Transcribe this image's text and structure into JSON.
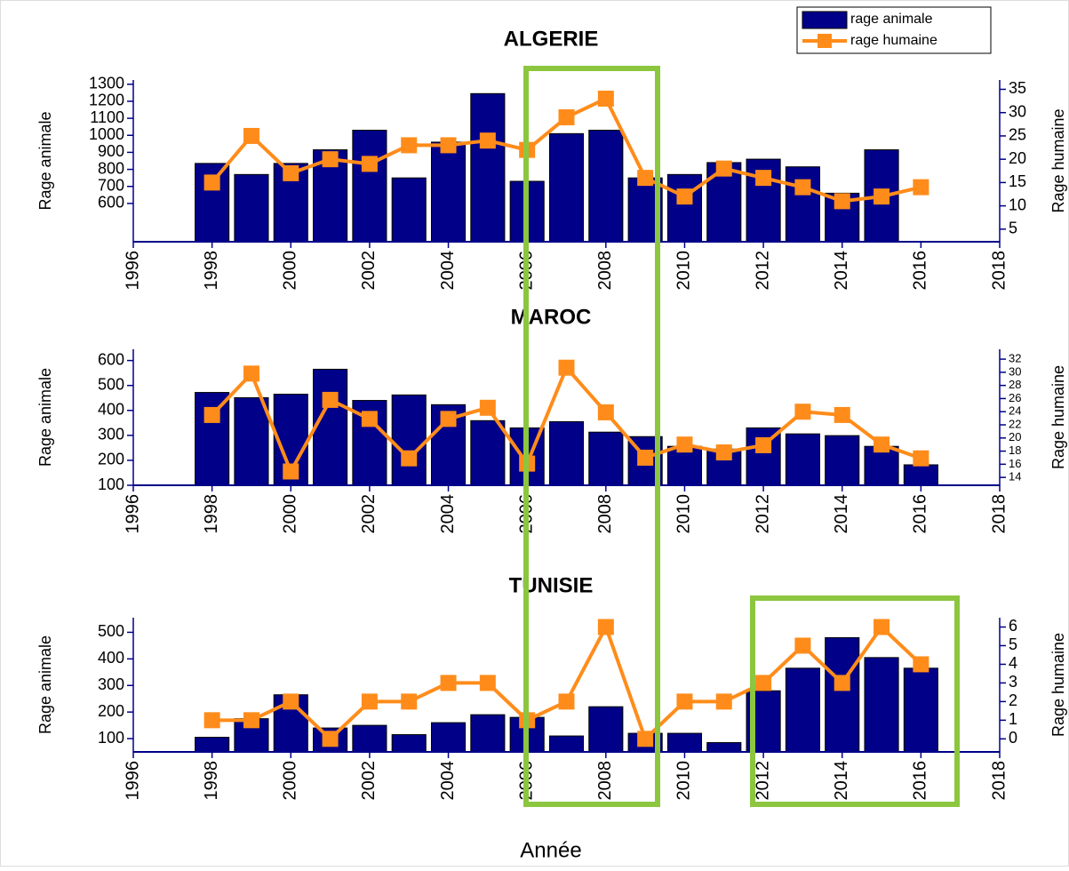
{
  "chart_data": [
    {
      "type": "bar",
      "title": "ALGERIE",
      "ylabel": "Rage animale",
      "y2label": "Rage humaine",
      "legend": "top right",
      "x": [
        1998,
        1999,
        2000,
        2001,
        2002,
        2003,
        2004,
        2005,
        2006,
        2007,
        2008,
        2009,
        2010,
        2011,
        2012,
        2013,
        2014,
        2015,
        2016
      ],
      "xlim": [
        1996,
        2018
      ],
      "xticks": [
        1996,
        1998,
        2000,
        2002,
        2004,
        2006,
        2008,
        2010,
        2012,
        2014,
        2016,
        2018
      ],
      "ylim": [
        375,
        1325
      ],
      "yticks": [
        600,
        700,
        800,
        900,
        1000,
        1100,
        1200,
        1300
      ],
      "y2lim": [
        2.3,
        37
      ],
      "y2ticks": [
        5,
        10,
        15,
        20,
        25,
        30,
        35
      ],
      "series": [
        {
          "name": "rage animale",
          "type": "bar",
          "color": "#000088",
          "values": [
            835,
            770,
            835,
            915,
            1030,
            750,
            960,
            1245,
            730,
            1010,
            1030,
            750,
            770,
            840,
            860,
            815,
            660,
            915,
            null
          ]
        },
        {
          "name": "rage humaine",
          "type": "line",
          "axis": "y2",
          "color": "#ff8c1a",
          "values": [
            15,
            25,
            17,
            20,
            19,
            23,
            23,
            24,
            22,
            29,
            33,
            16,
            12,
            18,
            16,
            14,
            11,
            12,
            14
          ]
        }
      ]
    },
    {
      "type": "bar",
      "title": "MAROC",
      "ylabel": "Rage animale",
      "y2label": "Rage humaine",
      "x": [
        1998,
        1999,
        2000,
        2001,
        2002,
        2003,
        2004,
        2005,
        2006,
        2007,
        2008,
        2009,
        2010,
        2011,
        2012,
        2013,
        2014,
        2015,
        2016
      ],
      "xlim": [
        1996,
        2018
      ],
      "xticks": [
        1996,
        1998,
        2000,
        2002,
        2004,
        2006,
        2008,
        2010,
        2012,
        2014,
        2016,
        2018
      ],
      "ylim": [
        100,
        645
      ],
      "yticks": [
        100,
        200,
        300,
        400,
        500,
        600
      ],
      "y2lim": [
        12.8,
        33.5
      ],
      "y2ticks": [
        14,
        16,
        18,
        20,
        22,
        24,
        26,
        28,
        30,
        32
      ],
      "series": [
        {
          "name": "rage animale",
          "type": "bar",
          "color": "#000088",
          "values": [
            472,
            451,
            465,
            565,
            440,
            462,
            423,
            359,
            330,
            355,
            313,
            295,
            256,
            245,
            330,
            306,
            299,
            256,
            182
          ]
        },
        {
          "name": "rage humaine",
          "type": "line",
          "axis": "y2",
          "color": "#ff8c1a",
          "values": [
            23.5,
            29.8,
            14.9,
            25.8,
            22.9,
            16.9,
            22.9,
            24.6,
            16.1,
            30.7,
            23.9,
            17,
            19,
            17.8,
            18.9,
            24,
            23.5,
            19,
            16.9
          ]
        }
      ]
    },
    {
      "type": "bar",
      "title": "TUNISIE",
      "ylabel": "Rage animale",
      "y2label": "Rage humaine",
      "xlabel": "Année",
      "x": [
        1998,
        1999,
        2000,
        2001,
        2002,
        2003,
        2004,
        2005,
        2006,
        2007,
        2008,
        2009,
        2010,
        2011,
        2012,
        2013,
        2014,
        2015,
        2016
      ],
      "xlim": [
        1996,
        2018
      ],
      "xticks": [
        1996,
        1998,
        2000,
        2002,
        2004,
        2006,
        2008,
        2010,
        2012,
        2014,
        2016,
        2018
      ],
      "ylim": [
        50,
        555
      ],
      "yticks": [
        100,
        200,
        300,
        400,
        500
      ],
      "y2lim": [
        -0.7,
        6.5
      ],
      "y2ticks": [
        0,
        1,
        2,
        3,
        4,
        5,
        6
      ],
      "series": [
        {
          "name": "rage animale",
          "type": "bar",
          "color": "#000088",
          "values": [
            105,
            175,
            265,
            140,
            150,
            115,
            160,
            190,
            180,
            110,
            220,
            120,
            120,
            85,
            280,
            365,
            480,
            405,
            365
          ]
        },
        {
          "name": "rage humaine",
          "type": "line",
          "axis": "y2",
          "color": "#ff8c1a",
          "values": [
            1,
            1,
            2,
            0,
            2,
            2,
            3,
            3,
            1,
            2,
            6,
            0,
            2,
            2,
            3,
            5,
            3,
            6,
            4
          ]
        }
      ]
    }
  ]
}
